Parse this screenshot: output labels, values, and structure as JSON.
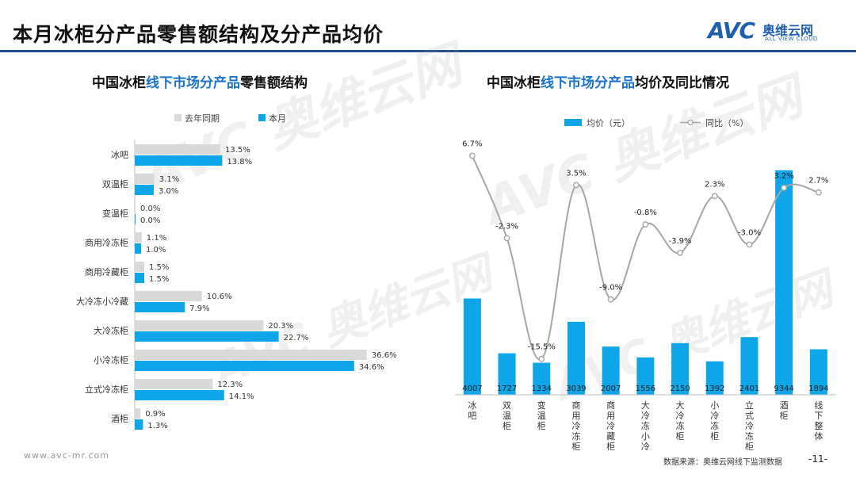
{
  "header": {
    "title": "本月冰柜分产品零售额结构及分产品均价",
    "logo_text": "AVC",
    "logo_cn": "奥维云网",
    "logo_en": "ALL VIEW CLOUD"
  },
  "footer": {
    "url": "www.avc-mr.com",
    "source": "数据来源：奥维云网线下监测数据",
    "page": "-11-"
  },
  "colors": {
    "last_year": "#d9d9d9",
    "this_month": "#0ea5e9",
    "line": "#a6a6a6",
    "brand": "#1f4e96"
  },
  "chart_data": [
    {
      "type": "bar",
      "orientation": "horizontal",
      "title_parts": [
        "中国冰柜",
        "线下市场分产品",
        "零售额结构"
      ],
      "categories": [
        "冰吧",
        "双温柜",
        "变温柜",
        "商用冷冻柜",
        "商用冷藏柜",
        "大冷冻小冷藏",
        "大冷冻柜",
        "小冷冻柜",
        "立式冷冻柜",
        "酒柜"
      ],
      "series": [
        {
          "name": "去年同期",
          "values": [
            13.5,
            3.1,
            0.0,
            1.1,
            1.5,
            10.6,
            20.3,
            36.6,
            12.3,
            0.9
          ]
        },
        {
          "name": "本月",
          "values": [
            13.8,
            3.0,
            0.0,
            1.0,
            1.5,
            7.9,
            22.7,
            34.6,
            14.1,
            1.3
          ]
        }
      ],
      "value_labels": {
        "去年同期": [
          "13.5%",
          "3.1%",
          "0.0%",
          "1.1%",
          "1.5%",
          "10.6%",
          "20.3%",
          "36.6%",
          "12.3%",
          "0.9%"
        ],
        "本月": [
          "13.8%",
          "3.0%",
          "0.0%",
          "1.0%",
          "1.5%",
          "7.9%",
          "22.7%",
          "34.6%",
          "14.1%",
          "1.3%"
        ]
      },
      "unit": "%",
      "xlim": [
        0,
        40
      ],
      "legend_position": "top"
    },
    {
      "type": "bar+line",
      "title_parts": [
        "中国冰柜",
        "线下市场分产品",
        "均价及同比情况"
      ],
      "categories": [
        "冰吧",
        "双温柜",
        "变温柜",
        "商用冷冻柜",
        "商用冷藏柜",
        "大冷冻小冷藏",
        "大冷冻柜",
        "小冷冻柜",
        "立式冷冻柜",
        "酒柜",
        "线下整体"
      ],
      "series": [
        {
          "name": "均价（元）",
          "type": "bar",
          "values": [
            4007,
            1727,
            1334,
            3039,
            2007,
            1556,
            2150,
            1392,
            2401,
            9344,
            1894
          ]
        },
        {
          "name": "同比（%）",
          "type": "line",
          "values": [
            6.7,
            -2.3,
            -15.5,
            3.5,
            -9.0,
            -0.8,
            -3.9,
            2.3,
            -3.0,
            3.2,
            2.7
          ]
        }
      ],
      "bar_labels": [
        "4007",
        "1727",
        "1334",
        "3039",
        "2007",
        "1556",
        "2150",
        "1392",
        "2401",
        "9344",
        "1894"
      ],
      "line_labels": [
        "6.7%",
        "-2.3%",
        "-15.5%",
        "3.5%",
        "-9.0%",
        "-0.8%",
        "-3.9%",
        "2.3%",
        "-3.0%",
        "3.2%",
        "2.7%"
      ],
      "bar_ylim": [
        0,
        9500
      ],
      "line_ylim": [
        -17,
        9
      ],
      "legend_position": "top"
    }
  ]
}
